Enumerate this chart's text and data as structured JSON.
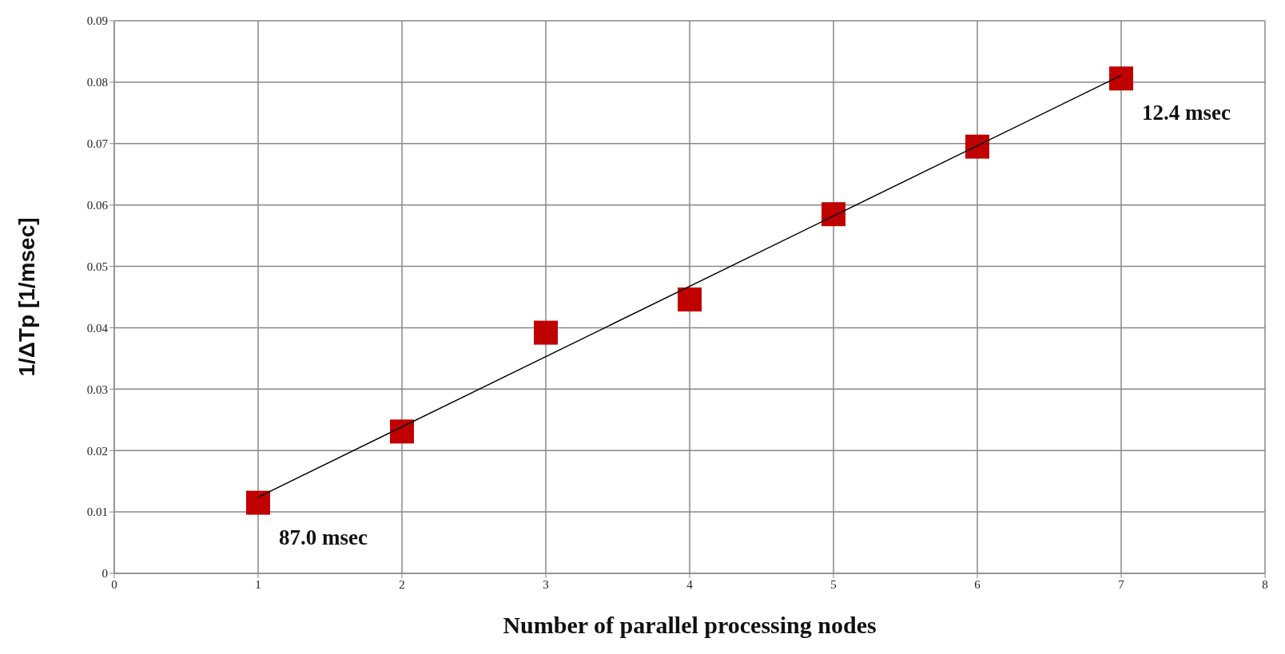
{
  "chart_data": {
    "type": "scatter",
    "xlabel": "Number of parallel processing nodes",
    "ylabel": "1/ΔTp [1/msec]",
    "x": [
      1,
      2,
      3,
      4,
      5,
      6,
      7
    ],
    "series": [
      {
        "color": "#c00000",
        "marker": "square",
        "values": [
          0.0115,
          0.0231,
          0.0392,
          0.0446,
          0.0585,
          0.0695,
          0.0806
        ]
      },
      {
        "type": "line",
        "color": "#000000",
        "marker": "none",
        "line_style": "solid",
        "x": [
          1,
          7
        ],
        "values": [
          0.0124,
          0.0811
        ]
      }
    ],
    "xlim": [
      0,
      8
    ],
    "xticks": [
      0,
      1,
      2,
      3,
      4,
      5,
      6,
      7,
      8
    ],
    "ylim": [
      0,
      0.09
    ],
    "yticks": [
      0,
      0.01,
      0.02,
      0.03,
      0.04,
      0.05,
      0.06,
      0.07,
      0.08,
      0.09
    ],
    "grid": true,
    "annotations": [
      {
        "text": "87.0 msec",
        "x": 1,
        "y": 0.0115
      },
      {
        "text": "12.4 msec",
        "x": 7,
        "y": 0.0806
      }
    ]
  }
}
